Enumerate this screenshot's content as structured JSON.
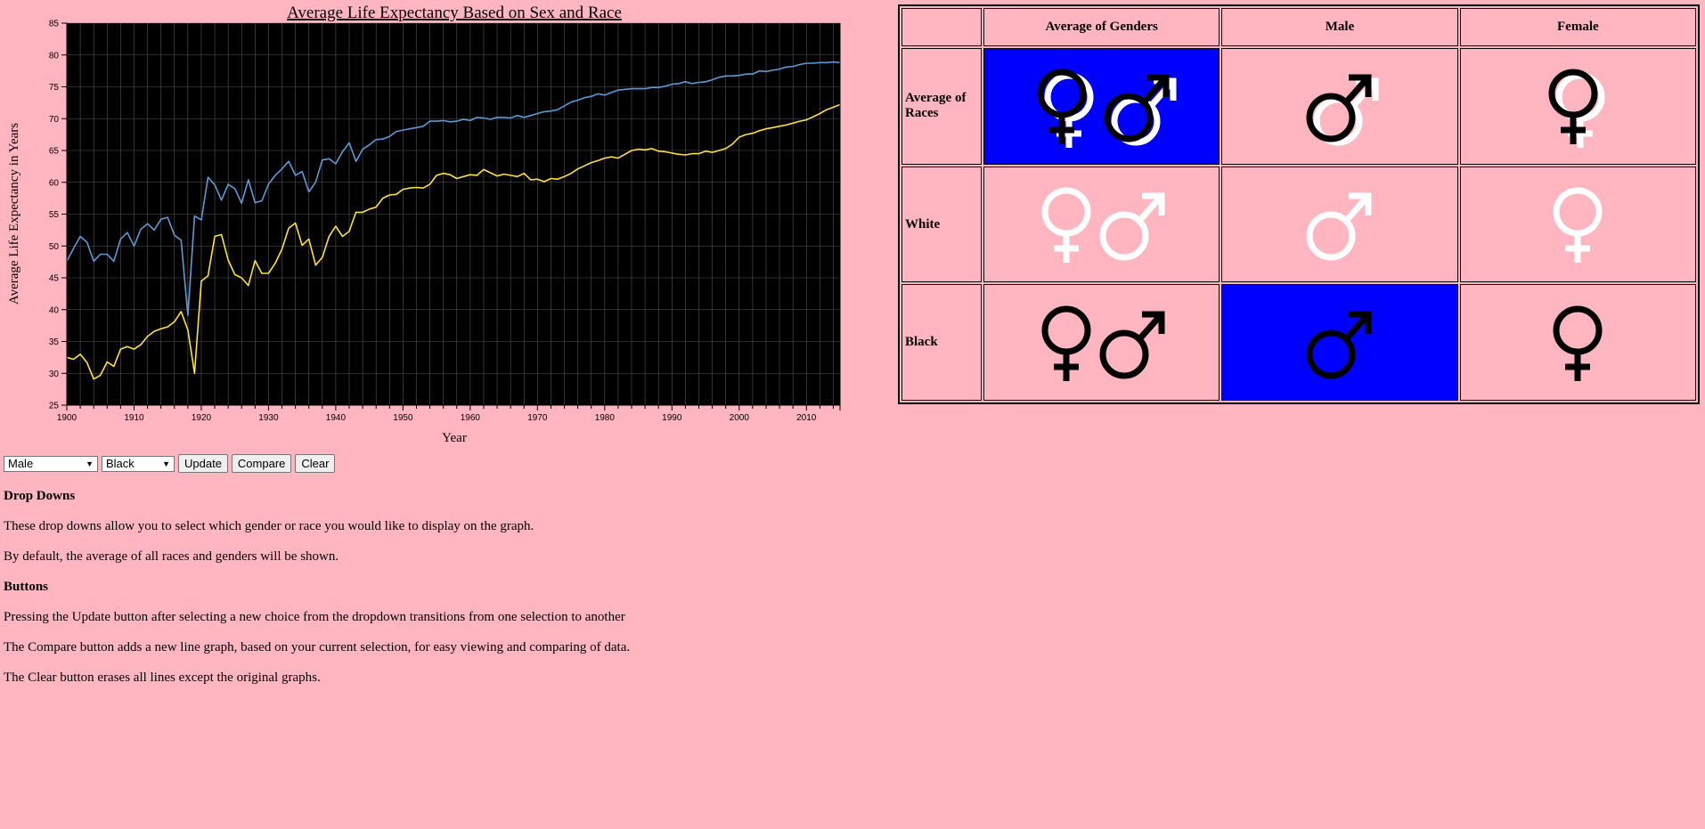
{
  "colors": {
    "background": "#ffb6c1",
    "plot_background": "#000000",
    "grid": "#555555",
    "series_blue": "#5b9bd5",
    "series_yellow": "#ffe138",
    "selected_cell": "#0000ff",
    "symbol_black": "#000000",
    "symbol_white": "#ffffff"
  },
  "chart_data": {
    "type": "line",
    "title": "Average Life Expectancy Based on Sex and Race",
    "xlabel": "Year",
    "ylabel": "Average Life Expectancy in Years",
    "xlim": [
      1900,
      2015
    ],
    "ylim": [
      25,
      85
    ],
    "x_ticks": [
      "1900",
      "1910",
      "1920",
      "1930",
      "1940",
      "1950",
      "1960",
      "1970",
      "1980",
      "1990",
      "2000",
      "2010"
    ],
    "y_ticks": [
      "25",
      "30",
      "35",
      "40",
      "45",
      "50",
      "55",
      "60",
      "65",
      "70",
      "75",
      "80",
      "85"
    ],
    "grid": true,
    "x": [
      1900,
      1901,
      1902,
      1903,
      1904,
      1905,
      1906,
      1907,
      1908,
      1909,
      1910,
      1911,
      1912,
      1913,
      1914,
      1915,
      1916,
      1917,
      1918,
      1919,
      1920,
      1921,
      1922,
      1923,
      1924,
      1925,
      1926,
      1927,
      1928,
      1929,
      1930,
      1931,
      1932,
      1933,
      1934,
      1935,
      1936,
      1937,
      1938,
      1939,
      1940,
      1941,
      1942,
      1943,
      1944,
      1945,
      1946,
      1947,
      1948,
      1949,
      1950,
      1951,
      1952,
      1953,
      1954,
      1955,
      1956,
      1957,
      1958,
      1959,
      1960,
      1961,
      1962,
      1963,
      1964,
      1965,
      1966,
      1967,
      1968,
      1969,
      1970,
      1971,
      1972,
      1973,
      1974,
      1975,
      1976,
      1977,
      1978,
      1979,
      1980,
      1981,
      1982,
      1983,
      1984,
      1985,
      1986,
      1987,
      1988,
      1989,
      1990,
      1991,
      1992,
      1993,
      1994,
      1995,
      1996,
      1997,
      1998,
      1999,
      2000,
      2001,
      2002,
      2003,
      2004,
      2005,
      2006,
      2007,
      2008,
      2009,
      2010,
      2011,
      2012,
      2013,
      2014,
      2015
    ],
    "series": [
      {
        "color": "#5b9bd5",
        "values": [
          47.6,
          49.6,
          51.5,
          50.6,
          47.6,
          48.7,
          48.7,
          47.6,
          51.1,
          52.1,
          50.0,
          52.6,
          53.5,
          52.5,
          54.2,
          54.5,
          51.7,
          50.9,
          39.1,
          54.7,
          54.1,
          60.8,
          59.6,
          57.2,
          59.7,
          59.0,
          56.7,
          60.4,
          56.8,
          57.1,
          59.7,
          61.1,
          62.1,
          63.3,
          61.1,
          61.7,
          58.5,
          60.0,
          63.5,
          63.7,
          62.9,
          64.8,
          66.2,
          63.3,
          65.2,
          65.9,
          66.7,
          66.8,
          67.2,
          68.0,
          68.2,
          68.4,
          68.6,
          68.8,
          69.6,
          69.6,
          69.7,
          69.5,
          69.6,
          69.9,
          69.7,
          70.2,
          70.1,
          69.9,
          70.2,
          70.2,
          70.1,
          70.5,
          70.2,
          70.5,
          70.8,
          71.1,
          71.2,
          71.4,
          72.0,
          72.6,
          72.9,
          73.3,
          73.5,
          73.9,
          73.7,
          74.1,
          74.5,
          74.6,
          74.7,
          74.7,
          74.7,
          74.9,
          74.9,
          75.1,
          75.4,
          75.5,
          75.8,
          75.5,
          75.7,
          75.8,
          76.1,
          76.5,
          76.7,
          76.7,
          76.8,
          77.0,
          77.0,
          77.5,
          77.4,
          77.6,
          77.8,
          78.1,
          78.2,
          78.5,
          78.7,
          78.7,
          78.8,
          78.8,
          78.9,
          78.8
        ]
      },
      {
        "color": "#ffe138",
        "values": [
          32.5,
          32.2,
          33.0,
          31.7,
          29.1,
          29.7,
          31.8,
          31.1,
          33.8,
          34.2,
          33.8,
          34.5,
          35.8,
          36.6,
          37.0,
          37.3,
          38.1,
          39.7,
          36.8,
          30.0,
          44.5,
          45.3,
          51.5,
          51.8,
          47.8,
          45.5,
          45.0,
          43.8,
          47.7,
          45.7,
          45.7,
          47.3,
          49.5,
          52.8,
          53.6,
          50.1,
          51.1,
          47.0,
          48.2,
          51.5,
          53.1,
          51.5,
          52.3,
          55.3,
          55.3,
          55.8,
          56.1,
          57.5,
          58.0,
          58.1,
          58.9,
          59.1,
          59.2,
          59.1,
          59.7,
          61.1,
          61.4,
          61.2,
          60.6,
          60.9,
          61.2,
          61.1,
          62.0,
          61.5,
          61.0,
          61.3,
          61.1,
          60.9,
          61.4,
          60.4,
          60.5,
          60.1,
          60.6,
          60.5,
          60.9,
          61.4,
          62.1,
          62.6,
          63.1,
          63.4,
          63.8,
          64.0,
          63.8,
          64.4,
          65.0,
          65.2,
          65.1,
          65.3,
          64.9,
          64.8,
          64.6,
          64.4,
          64.3,
          64.5,
          64.5,
          64.9,
          64.7,
          65.0,
          65.3,
          66.0,
          67.1,
          67.5,
          67.7,
          68.1,
          68.4,
          68.6,
          68.8,
          69.0,
          69.3,
          69.6,
          69.8,
          70.3,
          70.8,
          71.4,
          71.8,
          72.2
        ]
      }
    ]
  },
  "controls": {
    "gender_select": {
      "selected": "Male"
    },
    "race_select": {
      "selected": "Black"
    },
    "update_label": "Update",
    "compare_label": "Compare",
    "clear_label": "Clear"
  },
  "info": {
    "dropdowns_heading": "Drop Downs",
    "dropdowns_text_1": "These drop downs allow you to select which gender or race you would like to display on the graph.",
    "dropdowns_text_2": "By default, the average of all races and genders will be shown.",
    "buttons_heading": "Buttons",
    "buttons_text_1": "Pressing the Update button after selecting a new choice from the dropdown transitions from one selection to another",
    "buttons_text_2": "The Compare button adds a new line graph, based on your current selection, for easy viewing and comparing of data.",
    "buttons_text_3": "The Clear button erases all lines except the original graphs."
  },
  "matrix": {
    "col_headers": [
      "Average of Genders",
      "Male",
      "Female"
    ],
    "rows": [
      {
        "label": "Average of Races",
        "cells": [
          {
            "symbols": [
              "female-icon",
              "male-icon"
            ],
            "style": "black-over-white",
            "selected": true
          },
          {
            "symbols": [
              "male-icon"
            ],
            "style": "black-over-white",
            "selected": false
          },
          {
            "symbols": [
              "female-icon"
            ],
            "style": "black-over-white",
            "selected": false
          }
        ]
      },
      {
        "label": "White",
        "cells": [
          {
            "symbols": [
              "female-icon",
              "male-icon"
            ],
            "style": "white",
            "selected": false
          },
          {
            "symbols": [
              "male-icon"
            ],
            "style": "white",
            "selected": false
          },
          {
            "symbols": [
              "female-icon"
            ],
            "style": "white",
            "selected": false
          }
        ]
      },
      {
        "label": "Black",
        "cells": [
          {
            "symbols": [
              "female-icon",
              "male-icon"
            ],
            "style": "black",
            "selected": false
          },
          {
            "symbols": [
              "male-icon"
            ],
            "style": "black",
            "selected": true
          },
          {
            "symbols": [
              "female-icon"
            ],
            "style": "black",
            "selected": false
          }
        ]
      }
    ]
  }
}
